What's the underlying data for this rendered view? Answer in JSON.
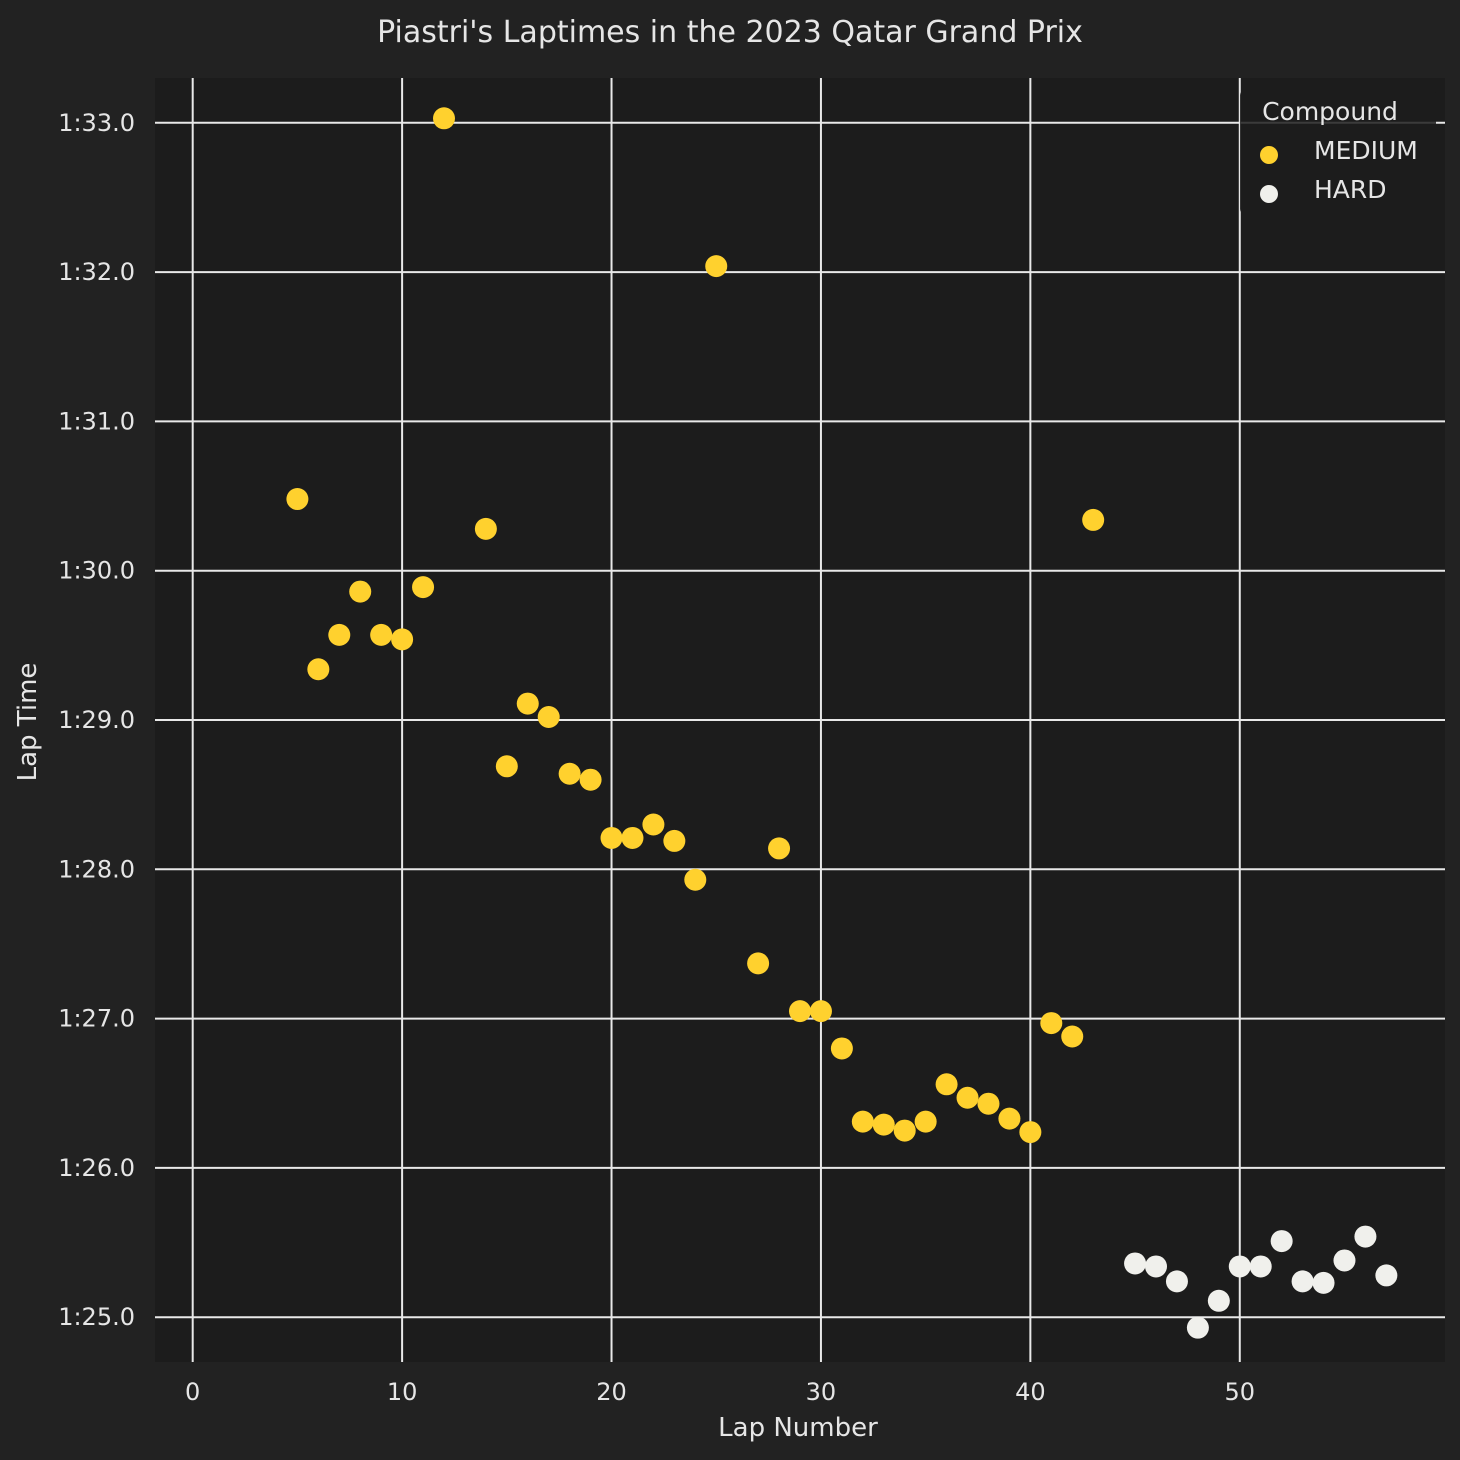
{
  "chart_data": {
    "type": "scatter",
    "title": "Piastri's Laptimes in the 2023 Qatar Grand Prix",
    "xlabel": "Lap Number",
    "ylabel": "Lap Time",
    "xlim": [
      -1.8,
      59.8
    ],
    "ylim": [
      84.7,
      93.3
    ],
    "x_ticks": [
      0,
      10,
      20,
      30,
      40,
      50
    ],
    "x_tick_labels": [
      "0",
      "10",
      "20",
      "30",
      "40",
      "50"
    ],
    "y_ticks": [
      85,
      86,
      87,
      88,
      89,
      90,
      91,
      92,
      93
    ],
    "y_tick_labels": [
      "1:25.0",
      "1:26.0",
      "1:27.0",
      "1:28.0",
      "1:29.0",
      "1:30.0",
      "1:31.0",
      "1:32.0",
      "1:33.0"
    ],
    "grid": true,
    "legend": {
      "title": "Compound",
      "position": "top-right"
    },
    "series": [
      {
        "name": "MEDIUM",
        "color": "#ffd12e",
        "points": [
          [
            5,
            90.48
          ],
          [
            6,
            89.34
          ],
          [
            7,
            89.57
          ],
          [
            8,
            89.86
          ],
          [
            9,
            89.57
          ],
          [
            10,
            89.54
          ],
          [
            11,
            89.89
          ],
          [
            12,
            93.03
          ],
          [
            14,
            90.28
          ],
          [
            15,
            88.69
          ],
          [
            16,
            89.11
          ],
          [
            17,
            89.02
          ],
          [
            18,
            88.64
          ],
          [
            19,
            88.6
          ],
          [
            20,
            88.21
          ],
          [
            21,
            88.21
          ],
          [
            22,
            88.3
          ],
          [
            23,
            88.19
          ],
          [
            24,
            87.93
          ],
          [
            25,
            92.04
          ],
          [
            27,
            87.37
          ],
          [
            28,
            88.14
          ],
          [
            29,
            87.05
          ],
          [
            30,
            87.05
          ],
          [
            31,
            86.8
          ],
          [
            32,
            86.31
          ],
          [
            33,
            86.29
          ],
          [
            34,
            86.25
          ],
          [
            35,
            86.31
          ],
          [
            36,
            86.56
          ],
          [
            37,
            86.47
          ],
          [
            38,
            86.43
          ],
          [
            39,
            86.33
          ],
          [
            40,
            86.24
          ],
          [
            41,
            86.97
          ],
          [
            42,
            86.88
          ],
          [
            43,
            90.34
          ]
        ]
      },
      {
        "name": "HARD",
        "color": "#f0f0ec",
        "points": [
          [
            45,
            85.36
          ],
          [
            46,
            85.34
          ],
          [
            47,
            85.24
          ],
          [
            48,
            84.93
          ],
          [
            49,
            85.11
          ],
          [
            50,
            85.34
          ],
          [
            51,
            85.34
          ],
          [
            52,
            85.51
          ],
          [
            53,
            85.24
          ],
          [
            54,
            85.23
          ],
          [
            55,
            85.38
          ],
          [
            56,
            85.54
          ],
          [
            57,
            85.28
          ]
        ]
      }
    ]
  }
}
